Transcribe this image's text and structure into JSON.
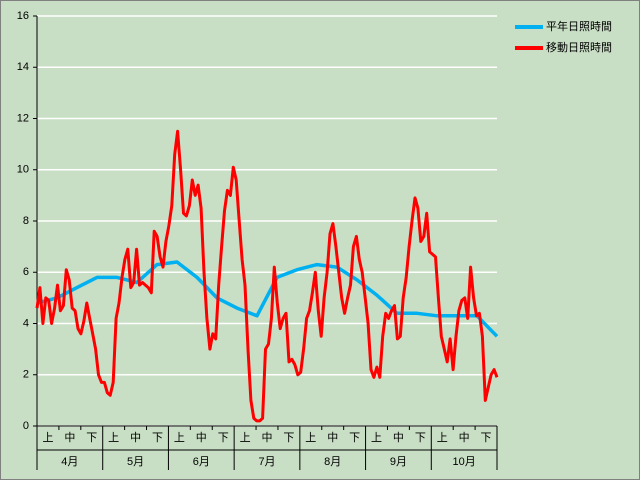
{
  "chart_data": {
    "type": "line",
    "months": [
      "4月",
      "5月",
      "6月",
      "7月",
      "8月",
      "9月",
      "10月"
    ],
    "periods": [
      "上",
      "中",
      "下"
    ],
    "ylim": [
      0,
      16
    ],
    "yticks": [
      0,
      2,
      4,
      6,
      8,
      10,
      12,
      14,
      16
    ],
    "grid": true,
    "series": [
      {
        "name": "平年日照時間",
        "color": "#00b0f0",
        "values": [
          4.8,
          5.0,
          5.4,
          5.8,
          5.8,
          5.6,
          6.3,
          6.4,
          5.8,
          5.0,
          4.6,
          4.3,
          5.8,
          6.1,
          6.3,
          6.2,
          5.7,
          5.1,
          4.4,
          4.4,
          4.3,
          4.3,
          4.3,
          3.5
        ]
      },
      {
        "name": "移動日照時間",
        "color": "#ff0000",
        "values": [
          4.6,
          5.4,
          4.0,
          5.0,
          4.9,
          4.0,
          4.6,
          5.5,
          4.5,
          4.7,
          6.1,
          5.7,
          4.6,
          4.5,
          3.8,
          3.6,
          4.1,
          4.8,
          4.2,
          3.6,
          3.0,
          2.0,
          1.7,
          1.7,
          1.3,
          1.2,
          1.7,
          4.2,
          4.8,
          5.8,
          6.5,
          6.9,
          5.4,
          5.6,
          6.9,
          5.5,
          5.6,
          5.5,
          5.4,
          5.2,
          7.6,
          7.4,
          6.6,
          6.2,
          7.2,
          7.8,
          8.6,
          10.6,
          11.5,
          10.0,
          8.3,
          8.2,
          8.6,
          9.6,
          9.0,
          9.4,
          8.5,
          6.0,
          4.2,
          3.0,
          3.6,
          3.4,
          5.5,
          7.0,
          8.4,
          9.2,
          9.0,
          10.1,
          9.6,
          8.0,
          6.5,
          5.5,
          3.0,
          1.0,
          0.3,
          0.2,
          0.2,
          0.3,
          3.0,
          3.2,
          4.2,
          6.2,
          4.8,
          3.8,
          4.2,
          4.4,
          2.5,
          2.6,
          2.4,
          2.0,
          2.1,
          3.0,
          4.2,
          4.5,
          5.2,
          6.0,
          4.5,
          3.5,
          5.0,
          6.0,
          7.5,
          7.9,
          7.0,
          6.0,
          5.0,
          4.4,
          5.0,
          5.5,
          7.0,
          7.4,
          6.5,
          6.0,
          5.0,
          4.0,
          2.2,
          1.9,
          2.3,
          1.9,
          3.5,
          4.4,
          4.2,
          4.5,
          4.7,
          3.4,
          3.5,
          5.0,
          5.8,
          7.0,
          8.0,
          8.9,
          8.5,
          7.2,
          7.4,
          8.3,
          6.8,
          6.7,
          6.6,
          5.0,
          3.5,
          3.0,
          2.5,
          3.4,
          2.2,
          3.5,
          4.5,
          4.9,
          5.0,
          4.2,
          6.2,
          5.0,
          4.3,
          4.4,
          3.5,
          1.0,
          1.5,
          2.0,
          2.2,
          1.9
        ]
      }
    ]
  }
}
